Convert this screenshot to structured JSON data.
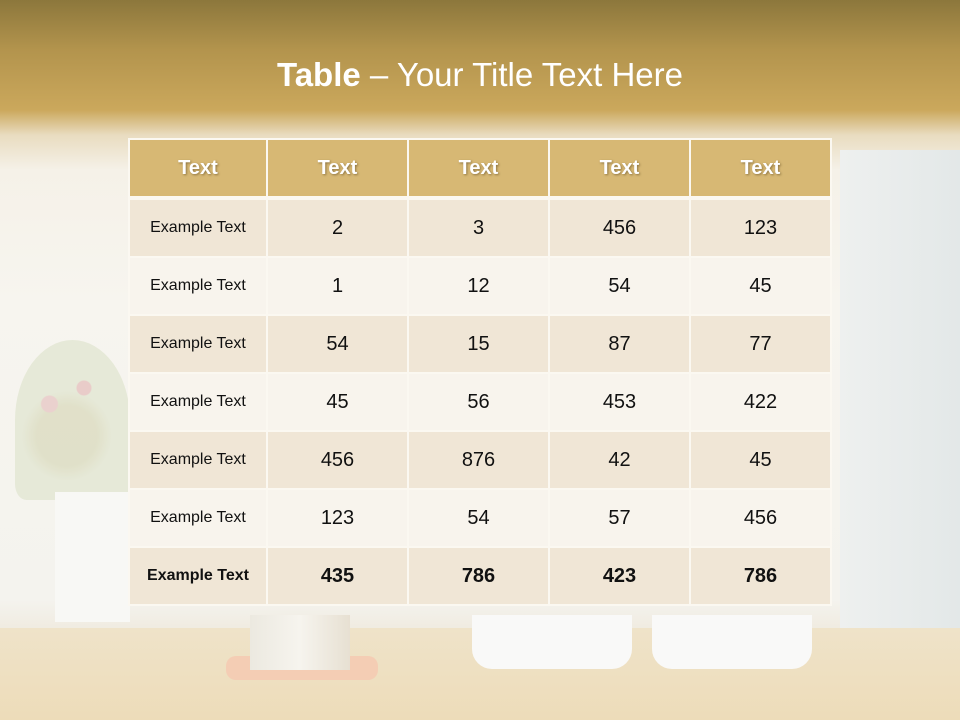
{
  "slide": {
    "title_bold": "Table",
    "title_rest": " – Your Title Text Here"
  },
  "table": {
    "headers": [
      "Text",
      "Text",
      "Text",
      "Text",
      "Text"
    ],
    "rows": [
      [
        "Example Text",
        "2",
        "3",
        "456",
        "123"
      ],
      [
        "Example Text",
        "1",
        "12",
        "54",
        "45"
      ],
      [
        "Example Text",
        "54",
        "15",
        "87",
        "77"
      ],
      [
        "Example Text",
        "45",
        "56",
        "453",
        "422"
      ],
      [
        "Example Text",
        "456",
        "876",
        "42",
        "45"
      ],
      [
        "Example Text",
        "123",
        "54",
        "57",
        "456"
      ],
      [
        "Example Text",
        "435",
        "786",
        "423",
        "786"
      ]
    ]
  },
  "colors": {
    "header_bg": "#d7b874",
    "row_odd": "#f0e6d6",
    "row_even": "#f8f4ed",
    "title_band": "#b3944d"
  }
}
